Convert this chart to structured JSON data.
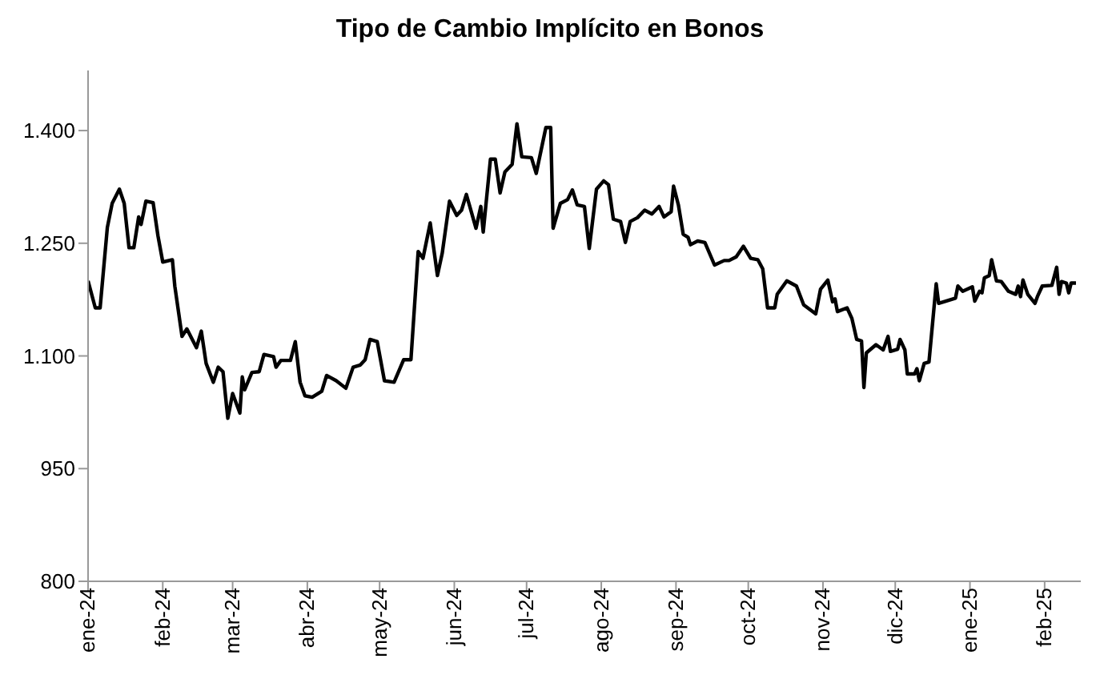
{
  "chart_data": {
    "type": "line",
    "title": "Tipo de Cambio Implícito en Bonos",
    "x": [
      "2024-01-01",
      "2024-01-04",
      "2024-01-06",
      "2024-01-09",
      "2024-01-11",
      "2024-01-14",
      "2024-01-16",
      "2024-01-18",
      "2024-01-20",
      "2024-01-22",
      "2024-01-23",
      "2024-01-25",
      "2024-01-28",
      "2024-01-30",
      "2024-02-01",
      "2024-02-05",
      "2024-02-06",
      "2024-02-09",
      "2024-02-11",
      "2024-02-15",
      "2024-02-17",
      "2024-02-19",
      "2024-02-22",
      "2024-02-24",
      "2024-02-26",
      "2024-02-28",
      "2024-03-01",
      "2024-03-04",
      "2024-03-05",
      "2024-03-06",
      "2024-03-09",
      "2024-03-12",
      "2024-03-14",
      "2024-03-18",
      "2024-03-19",
      "2024-03-21",
      "2024-03-25",
      "2024-03-27",
      "2024-03-29",
      "2024-03-31",
      "2024-04-03",
      "2024-04-07",
      "2024-04-09",
      "2024-04-13",
      "2024-04-17",
      "2024-04-20",
      "2024-04-23",
      "2024-04-25",
      "2024-04-27",
      "2024-04-30",
      "2024-05-03",
      "2024-05-07",
      "2024-05-11",
      "2024-05-14",
      "2024-05-17",
      "2024-05-19",
      "2024-05-22",
      "2024-05-25",
      "2024-05-27",
      "2024-05-30",
      "2024-06-02",
      "2024-06-04",
      "2024-06-06",
      "2024-06-10",
      "2024-06-12",
      "2024-06-13",
      "2024-06-16",
      "2024-06-18",
      "2024-06-20",
      "2024-06-22",
      "2024-06-25",
      "2024-06-27",
      "2024-06-29",
      "2024-07-03",
      "2024-07-05",
      "2024-07-09",
      "2024-07-11",
      "2024-07-12",
      "2024-07-15",
      "2024-07-18",
      "2024-07-20",
      "2024-07-22",
      "2024-07-25",
      "2024-07-27",
      "2024-07-30",
      "2024-08-02",
      "2024-08-04",
      "2024-08-06",
      "2024-08-09",
      "2024-08-11",
      "2024-08-13",
      "2024-08-16",
      "2024-08-19",
      "2024-08-22",
      "2024-08-25",
      "2024-08-27",
      "2024-08-30",
      "2024-08-31",
      "2024-09-02",
      "2024-09-04",
      "2024-09-06",
      "2024-09-07",
      "2024-09-10",
      "2024-09-13",
      "2024-09-17",
      "2024-09-21",
      "2024-09-23",
      "2024-09-26",
      "2024-09-29",
      "2024-10-02",
      "2024-10-05",
      "2024-10-07",
      "2024-10-09",
      "2024-10-12",
      "2024-10-13",
      "2024-10-17",
      "2024-10-21",
      "2024-10-24",
      "2024-10-29",
      "2024-10-31",
      "2024-11-03",
      "2024-11-05",
      "2024-11-06",
      "2024-11-07",
      "2024-11-11",
      "2024-11-13",
      "2024-11-15",
      "2024-11-17",
      "2024-11-18",
      "2024-11-19",
      "2024-11-23",
      "2024-11-26",
      "2024-11-28",
      "2024-11-29",
      "2024-12-02",
      "2024-12-03",
      "2024-12-05",
      "2024-12-06",
      "2024-12-09",
      "2024-12-10",
      "2024-12-11",
      "2024-12-13",
      "2024-12-15",
      "2024-12-18",
      "2024-12-19",
      "2024-12-22",
      "2024-12-26",
      "2024-12-27",
      "2024-12-29",
      "2025-01-02",
      "2025-01-03",
      "2025-01-05",
      "2025-01-06",
      "2025-01-07",
      "2025-01-09",
      "2025-01-10",
      "2025-01-12",
      "2025-01-14",
      "2025-01-17",
      "2025-01-20",
      "2025-01-21",
      "2025-01-22",
      "2025-01-23",
      "2025-01-25",
      "2025-01-28",
      "2025-01-29",
      "2025-01-31",
      "2025-02-04",
      "2025-02-06",
      "2025-02-07",
      "2025-02-08",
      "2025-02-10",
      "2025-02-11",
      "2025-02-12",
      "2025-02-14"
    ],
    "series": [
      {
        "color": "#000000",
        "values": [
          1200,
          1164,
          1164,
          1271,
          1303,
          1322,
          1303,
          1244,
          1244,
          1285,
          1275,
          1306,
          1304,
          1260,
          1225,
          1228,
          1193,
          1126,
          1136,
          1111,
          1133,
          1090,
          1065,
          1085,
          1079,
          1017,
          1050,
          1024,
          1072,
          1055,
          1078,
          1079,
          1102,
          1099,
          1085,
          1094,
          1094,
          1119,
          1065,
          1047,
          1045,
          1053,
          1074,
          1067,
          1057,
          1085,
          1088,
          1095,
          1122,
          1119,
          1067,
          1065,
          1095,
          1095,
          1239,
          1230,
          1277,
          1207,
          1237,
          1306,
          1287,
          1294,
          1315,
          1270,
          1299,
          1265,
          1362,
          1362,
          1317,
          1345,
          1355,
          1409,
          1365,
          1364,
          1343,
          1404,
          1404,
          1270,
          1303,
          1308,
          1321,
          1301,
          1299,
          1243,
          1322,
          1333,
          1328,
          1282,
          1279,
          1251,
          1279,
          1284,
          1294,
          1289,
          1299,
          1285,
          1292,
          1326,
          1301,
          1262,
          1258,
          1248,
          1253,
          1251,
          1221,
          1227,
          1227,
          1232,
          1246,
          1230,
          1228,
          1216,
          1164,
          1164,
          1182,
          1200,
          1193,
          1168,
          1156,
          1189,
          1201,
          1172,
          1176,
          1159,
          1164,
          1150,
          1122,
          1120,
          1058,
          1104,
          1115,
          1108,
          1126,
          1106,
          1109,
          1122,
          1108,
          1076,
          1076,
          1083,
          1067,
          1090,
          1092,
          1196,
          1170,
          1173,
          1177,
          1193,
          1186,
          1192,
          1173,
          1186,
          1184,
          1204,
          1207,
          1228,
          1200,
          1199,
          1186,
          1182,
          1193,
          1179,
          1201,
          1182,
          1170,
          1179,
          1193,
          1194,
          1218,
          1182,
          1199,
          1197,
          1184,
          1197,
          1197
        ]
      }
    ],
    "xlim": [
      "2024-01-01",
      "2025-02-16"
    ],
    "xticks": [
      {
        "value": "2024-01-01",
        "label": "ene-24"
      },
      {
        "value": "2024-02-01",
        "label": "feb-24"
      },
      {
        "value": "2024-03-01",
        "label": "mar-24"
      },
      {
        "value": "2024-04-01",
        "label": "abr-24"
      },
      {
        "value": "2024-05-01",
        "label": "may-24"
      },
      {
        "value": "2024-06-01",
        "label": "jun-24"
      },
      {
        "value": "2024-07-01",
        "label": "jul-24"
      },
      {
        "value": "2024-08-01",
        "label": "ago-24"
      },
      {
        "value": "2024-09-01",
        "label": "sep-24"
      },
      {
        "value": "2024-10-01",
        "label": "oct-24"
      },
      {
        "value": "2024-11-01",
        "label": "nov-24"
      },
      {
        "value": "2024-12-01",
        "label": "dic-24"
      },
      {
        "value": "2025-01-01",
        "label": "ene-25"
      },
      {
        "value": "2025-02-01",
        "label": "feb-25"
      }
    ],
    "ylim": [
      800,
      1480
    ],
    "yticks": [
      800,
      950,
      {
        "value": 1100,
        "label": "1.100"
      },
      {
        "value": 1250,
        "label": "1.250"
      },
      {
        "value": 1400,
        "label": "1.400"
      }
    ],
    "grid": false,
    "legend": false,
    "marker": "none",
    "line_style": "solid"
  }
}
